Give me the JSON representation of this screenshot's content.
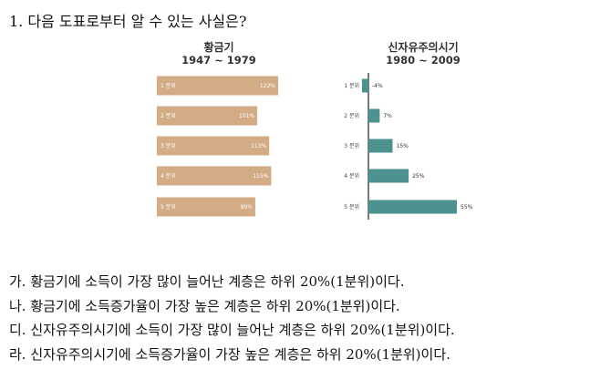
{
  "question": "1. 다음 도표로부터 알 수 있는 사실은?",
  "chart_data": [
    {
      "type": "bar",
      "orientation": "horizontal",
      "title": "황금기",
      "subtitle": "1947 ~ 1979",
      "categories": [
        "1 분위",
        "2 분위",
        "3 분위",
        "4 분위",
        "5 분위"
      ],
      "values": [
        122,
        101,
        113,
        115,
        99
      ],
      "value_labels": [
        "122%",
        "101%",
        "113%",
        "115%",
        "99%"
      ],
      "color": "#D3AB84",
      "xlim": [
        0,
        130
      ]
    },
    {
      "type": "bar",
      "orientation": "horizontal",
      "title": "신자유주의시기",
      "subtitle": "1980 ~ 2009",
      "categories": [
        "1 분위",
        "2 분위",
        "3 분위",
        "4 분위",
        "5 분위"
      ],
      "values": [
        -4,
        7,
        15,
        25,
        55
      ],
      "value_labels": [
        "-4%",
        "7%",
        "15%",
        "25%",
        "55%"
      ],
      "color": "#4E9290",
      "xlim": [
        -5,
        60
      ]
    }
  ],
  "choices": [
    "가. 황금기에 소득이 가장 많이 늘어난 계층은 하위 20%(1분위)이다.",
    "나. 황금기에 소득증가율이 가장 높은 계층은 하위 20%(1분위)이다.",
    "디. 신자유주의시기에 소득이 가장 많이 늘어난 계층은 하위 20%(1분위)이다.",
    "라. 신자유주의시기에 소득증가율이 가장 높은 계층은 하위 20%(1분위)이다."
  ]
}
